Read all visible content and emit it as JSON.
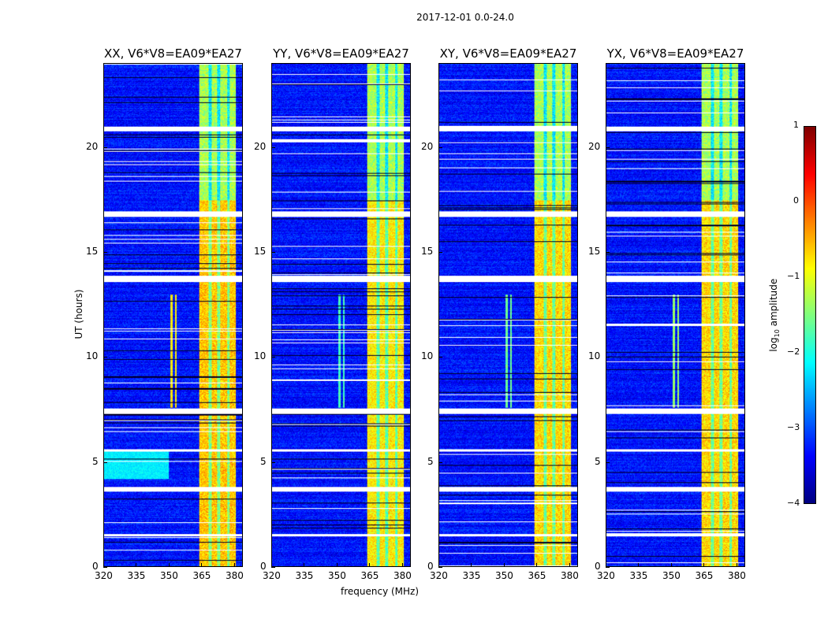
{
  "chart_data": {
    "type": "heatmap",
    "title": "2017-12-01 0.0-24.0",
    "xlabel": "frequency (MHz)",
    "ylabel": "UT (hours)",
    "xlim": [
      320,
      384
    ],
    "ylim": [
      0,
      24
    ],
    "xticks": [
      320,
      335,
      350,
      365,
      380
    ],
    "yticks": [
      0,
      5,
      10,
      15,
      20
    ],
    "panels": [
      {
        "title": "XX, V6*V8=EA09*EA27",
        "band_level": -0.6,
        "rfi_level": -0.8
      },
      {
        "title": "YY, V6*V8=EA09*EA27",
        "band_level": -0.8,
        "rfi_level": -1.8
      },
      {
        "title": "XY, V6*V8=EA09*EA27",
        "band_level": -0.7,
        "rfi_level": -1.6
      },
      {
        "title": "YX, V6*V8=EA09*EA27",
        "band_level": -0.7,
        "rfi_level": -1.4
      }
    ],
    "background_level": -3.3,
    "bright_band_mhz": [
      364,
      381
    ],
    "flagged_hours": [
      [
        20.8,
        21.0
      ],
      [
        16.7,
        16.95
      ],
      [
        13.6,
        13.9
      ],
      [
        7.3,
        7.55
      ],
      [
        5.5,
        5.6
      ],
      [
        3.6,
        3.8
      ],
      [
        1.45,
        1.55
      ]
    ],
    "colorbar": {
      "label": "log10 amplitude",
      "label_main": "log",
      "label_sub": "10",
      "label_rest": " amplitude",
      "range": [
        -4,
        1
      ],
      "ticks": [
        1,
        0,
        -1,
        -2,
        -3,
        -4
      ],
      "tick_labels": [
        "1",
        "0",
        "−1",
        "−2",
        "−3",
        "−4"
      ],
      "colormap": "jet"
    }
  }
}
